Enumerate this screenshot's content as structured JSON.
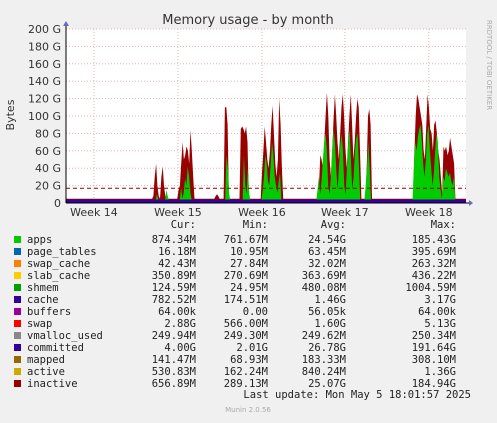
{
  "chart_data": {
    "type": "area",
    "title": "Memory usage - by month",
    "ylabel": "Bytes",
    "side_label": "RRDTOOL / TOBI OETIKER",
    "y_ticks": [
      "0",
      "20 G",
      "40 G",
      "60 G",
      "80 G",
      "100 G",
      "120 G",
      "140 G",
      "160 G",
      "180 G",
      "200 G"
    ],
    "ylim": [
      0,
      200
    ],
    "x_ticks": [
      "Week 14",
      "Week 15",
      "Week 16",
      "Week 17",
      "Week 18"
    ],
    "threshold_line": 17,
    "series": [
      {
        "name": "apps",
        "color": "#00cc00"
      },
      {
        "name": "inactive",
        "color": "#990000"
      },
      {
        "name": "committed",
        "color": "#330099"
      }
    ],
    "columns": [
      "Cur:",
      "Min:",
      "Avg:",
      "Max:"
    ],
    "legend_rows": [
      {
        "name": "apps",
        "color": "#00cc00",
        "cur": "874.34M",
        "min": "761.67M",
        "avg": "24.54G",
        "max": "185.43G"
      },
      {
        "name": "page_tables",
        "color": "#0066b3",
        "cur": "16.18M",
        "min": "10.95M",
        "avg": "63.45M",
        "max": "395.69M"
      },
      {
        "name": "swap_cache",
        "color": "#ff8000",
        "cur": "42.43M",
        "min": "27.84M",
        "avg": "32.02M",
        "max": "263.32M"
      },
      {
        "name": "slab_cache",
        "color": "#ffcc00",
        "cur": "350.89M",
        "min": "270.69M",
        "avg": "363.69M",
        "max": "436.22M"
      },
      {
        "name": "shmem",
        "color": "#00a000",
        "cur": "124.59M",
        "min": "24.95M",
        "avg": "480.08M",
        "max": "1004.59M"
      },
      {
        "name": "cache",
        "color": "#330099",
        "cur": "782.52M",
        "min": "174.51M",
        "avg": "1.46G",
        "max": "3.17G"
      },
      {
        "name": "buffers",
        "color": "#990099",
        "cur": "64.00k",
        "min": "0.00",
        "avg": "56.05k",
        "max": "64.00k"
      },
      {
        "name": "swap",
        "color": "#ff0000",
        "cur": "2.88G",
        "min": "566.00M",
        "avg": "1.60G",
        "max": "5.13G"
      },
      {
        "name": "vmalloc_used",
        "color": "#888888",
        "cur": "249.94M",
        "min": "249.30M",
        "avg": "249.62M",
        "max": "250.34M"
      },
      {
        "name": "committed",
        "color": "#330099",
        "cur": "4.00G",
        "min": "2.01G",
        "avg": "26.78G",
        "max": "191.64G"
      },
      {
        "name": "mapped",
        "color": "#996600",
        "cur": "141.47M",
        "min": "68.93M",
        "avg": "183.33M",
        "max": "308.10M"
      },
      {
        "name": "active",
        "color": "#ccaa00",
        "cur": "530.83M",
        "min": "162.24M",
        "avg": "840.24M",
        "max": "1.36G"
      },
      {
        "name": "inactive",
        "color": "#990000",
        "cur": "656.89M",
        "min": "289.13M",
        "avg": "25.07G",
        "max": "184.94G"
      }
    ],
    "last_update": "Last update: Mon May  5 18:01:57 2025",
    "footer": "Munin 2.0.56",
    "apps_profile": [
      2,
      2,
      2,
      2,
      2,
      2,
      2,
      2,
      2,
      2,
      2,
      2,
      2,
      2,
      2,
      2,
      2,
      2,
      2,
      2,
      2,
      2,
      2,
      2,
      2,
      2,
      2,
      2,
      2,
      2,
      2,
      2,
      2,
      2,
      2,
      2,
      2,
      2,
      2,
      2,
      2,
      2,
      2,
      2,
      2,
      2,
      2,
      2,
      2,
      2,
      2,
      2,
      2,
      2,
      2,
      2,
      2,
      2,
      2,
      2,
      2,
      2,
      2,
      2,
      2,
      2,
      2,
      3,
      10,
      4,
      2,
      2,
      2,
      2,
      2,
      15,
      8,
      3,
      2,
      2,
      2,
      2,
      2,
      2,
      2,
      2,
      18,
      5,
      12,
      28,
      20,
      42,
      30,
      12,
      2,
      2,
      2,
      2,
      2,
      2,
      2,
      2,
      2,
      2,
      2,
      2,
      2,
      2,
      2,
      2,
      5,
      3,
      2,
      2,
      2,
      2,
      2,
      2,
      2,
      2,
      55,
      40,
      10,
      2,
      2,
      2,
      2,
      2,
      2,
      2,
      2,
      2,
      2,
      55,
      20,
      10,
      40,
      10,
      2,
      2,
      2,
      2,
      2,
      2,
      2,
      2,
      2,
      15,
      30,
      55,
      45,
      25,
      20,
      45,
      70,
      55,
      30,
      20,
      12,
      25,
      35,
      2,
      2,
      2,
      2,
      2,
      2,
      2,
      2,
      2,
      2,
      2,
      2,
      2,
      2,
      2,
      2,
      2,
      2,
      2,
      2,
      2,
      2,
      2,
      2,
      2,
      2,
      2,
      15,
      30,
      10,
      25,
      50,
      70,
      80,
      60,
      20,
      10,
      30,
      60,
      85,
      70,
      40,
      15,
      40,
      65,
      80,
      60,
      20,
      10,
      40,
      70,
      85,
      50,
      15,
      30,
      60,
      75,
      80,
      40,
      2,
      2,
      2,
      2,
      20,
      40,
      70,
      40,
      2,
      2,
      2,
      2,
      2,
      2,
      2,
      2,
      2,
      2,
      2,
      2,
      2,
      2,
      2,
      2,
      2,
      2,
      2,
      2,
      2,
      2,
      2,
      2,
      2,
      2,
      2,
      2,
      2,
      2,
      2,
      2,
      40,
      70,
      60,
      75,
      85,
      90,
      70,
      45,
      30,
      50,
      80,
      90,
      60,
      40,
      20,
      35,
      60,
      80,
      70,
      30,
      15,
      5,
      30,
      25,
      40,
      35,
      30,
      35,
      25,
      20,
      30,
      2,
      2,
      2,
      2,
      2,
      2,
      2,
      2,
      2
    ],
    "inactive_profile": [
      5,
      5,
      5,
      5,
      5,
      5,
      5,
      5,
      5,
      5,
      5,
      5,
      5,
      5,
      5,
      5,
      5,
      5,
      5,
      5,
      5,
      5,
      5,
      5,
      5,
      5,
      5,
      5,
      5,
      5,
      5,
      5,
      5,
      5,
      5,
      5,
      5,
      5,
      5,
      5,
      5,
      5,
      5,
      5,
      5,
      5,
      5,
      5,
      5,
      5,
      5,
      5,
      5,
      5,
      5,
      5,
      5,
      5,
      5,
      5,
      5,
      5,
      5,
      5,
      5,
      5,
      8,
      30,
      45,
      20,
      8,
      5,
      30,
      42,
      20,
      8,
      5,
      5,
      5,
      5,
      5,
      5,
      5,
      5,
      5,
      15,
      20,
      45,
      70,
      50,
      55,
      65,
      60,
      45,
      84,
      60,
      30,
      5,
      5,
      5,
      5,
      5,
      5,
      5,
      5,
      5,
      5,
      5,
      5,
      5,
      5,
      5,
      5,
      8,
      10,
      8,
      5,
      5,
      5,
      5,
      110,
      110,
      90,
      5,
      5,
      5,
      5,
      5,
      5,
      5,
      5,
      5,
      85,
      88,
      85,
      80,
      88,
      70,
      5,
      5,
      5,
      5,
      5,
      5,
      5,
      5,
      5,
      5,
      35,
      60,
      88,
      70,
      50,
      40,
      60,
      90,
      112,
      80,
      45,
      30,
      50,
      120,
      90,
      40,
      5,
      5,
      5,
      5,
      5,
      5,
      5,
      5,
      5,
      5,
      5,
      5,
      5,
      5,
      5,
      5,
      5,
      5,
      5,
      5,
      5,
      5,
      5,
      5,
      5,
      5,
      5,
      20,
      55,
      50,
      40,
      70,
      100,
      127,
      100,
      50,
      30,
      60,
      95,
      125,
      100,
      70,
      50,
      80,
      110,
      125,
      100,
      60,
      40,
      70,
      100,
      125,
      90,
      50,
      70,
      100,
      120,
      110,
      60,
      5,
      5,
      5,
      5,
      40,
      100,
      108,
      90,
      5,
      5,
      5,
      5,
      5,
      5,
      5,
      5,
      5,
      5,
      5,
      5,
      5,
      5,
      5,
      5,
      5,
      5,
      5,
      5,
      5,
      5,
      5,
      5,
      5,
      5,
      5,
      5,
      5,
      5,
      5,
      5,
      55,
      100,
      125,
      120,
      110,
      100,
      90,
      60,
      50,
      90,
      125,
      110,
      85,
      80,
      60,
      90,
      95,
      80,
      60,
      50,
      30,
      10,
      65,
      60,
      65,
      55,
      60,
      75,
      65,
      55,
      45,
      5,
      5,
      5,
      5,
      5,
      5,
      5,
      5,
      5
    ]
  }
}
